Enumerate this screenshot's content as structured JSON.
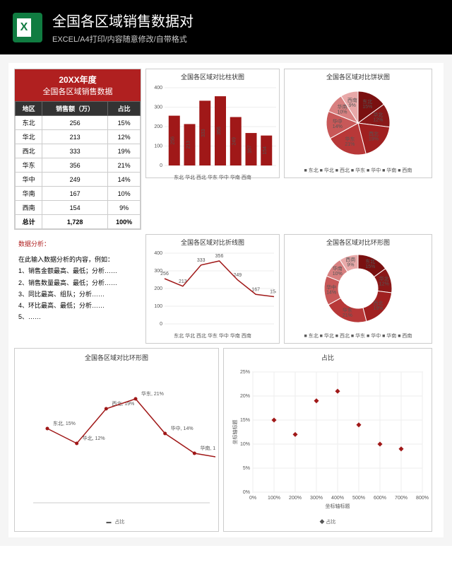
{
  "header": {
    "title": "全国各区域销售数据对",
    "subtitle": "EXCEL/A4打印/内容随意修改/自带格式",
    "icon_letter": "X"
  },
  "data_table": {
    "title_line1": "20XX年度",
    "title_line2": "全国各区域销售数据",
    "headers": [
      "地区",
      "销售额（万）",
      "占比"
    ],
    "rows": [
      [
        "东北",
        "256",
        "15%"
      ],
      [
        "华北",
        "213",
        "12%"
      ],
      [
        "西北",
        "333",
        "19%"
      ],
      [
        "华东",
        "356",
        "21%"
      ],
      [
        "华中",
        "249",
        "14%"
      ],
      [
        "华南",
        "167",
        "10%"
      ],
      [
        "西南",
        "154",
        "9%"
      ]
    ],
    "total": [
      "总计",
      "1,728",
      "100%"
    ]
  },
  "bar_chart": {
    "title": "全国各区域对比柱状图",
    "yticks": [
      0,
      100,
      200,
      300,
      400
    ],
    "categories": [
      "东北",
      "华北",
      "西北",
      "华东",
      "华中",
      "华南",
      "西南"
    ],
    "values": [
      256,
      213,
      333,
      356,
      249,
      167,
      154
    ],
    "ymax": 400,
    "bar_color": "#a01818",
    "label_color": "#fff"
  },
  "pie_chart": {
    "title": "全国各区域对比饼状图",
    "slices": [
      {
        "label": "东北",
        "pct": 15,
        "color": "#7a1010"
      },
      {
        "label": "华北",
        "pct": 12,
        "color": "#8a1818"
      },
      {
        "label": "西北",
        "pct": 19,
        "color": "#a02020"
      },
      {
        "label": "华东",
        "pct": 21,
        "color": "#b83838"
      },
      {
        "label": "华中",
        "pct": 14,
        "color": "#c85858"
      },
      {
        "label": "华南",
        "pct": 10,
        "color": "#d88080"
      },
      {
        "label": "西南",
        "pct": 9,
        "color": "#e8a8a8"
      }
    ],
    "legend": "■ 东北  ■ 华北  ■ 西北  ■ 华东  ■ 华中  ■ 华南  ■ 西南"
  },
  "analysis": {
    "title": "数据分析：",
    "intro": "在此输入数据分析的内容，例如：",
    "items": [
      "1、销售金额最高、最低；分析……",
      "2、销售数量最高、最低；分析……",
      "3、同比最高、组队；分析……",
      "4、环比最高、最低；分析……",
      "5、……"
    ]
  },
  "line_chart": {
    "title": "全国各区域对比折线图",
    "yticks": [
      0,
      100,
      200,
      300,
      400
    ],
    "categories": [
      "东北",
      "华北",
      "西北",
      "华东",
      "华中",
      "华南",
      "西南"
    ],
    "values": [
      256,
      213,
      333,
      356,
      249,
      167,
      154
    ],
    "ymax": 400,
    "line_color": "#a01818"
  },
  "donut_chart": {
    "title": "全国各区域对比环形图",
    "slices": [
      {
        "label": "东北",
        "pct": 15,
        "color": "#7a1010"
      },
      {
        "label": "华北",
        "pct": 12,
        "color": "#8a1818"
      },
      {
        "label": "西北",
        "pct": 19,
        "color": "#a02020"
      },
      {
        "label": "华东",
        "pct": 21,
        "color": "#b83838"
      },
      {
        "label": "华中",
        "pct": 14,
        "color": "#c85858"
      },
      {
        "label": "华南",
        "pct": 10,
        "color": "#d88080"
      },
      {
        "label": "西南",
        "pct": 9,
        "color": "#e8a8a8"
      }
    ],
    "legend": "■ 东北  ■ 华北  ■ 西北  ■ 华东  ■ 华中  ■ 华南  ■ 西南"
  },
  "big_line": {
    "title": "全国各区域对比环形图",
    "categories": [
      "东北",
      "华北",
      "西北",
      "华东",
      "华中",
      "华南",
      "西南"
    ],
    "pct": [
      15,
      12,
      19,
      21,
      14,
      10,
      9
    ],
    "line_color": "#a01818",
    "legend": "占比"
  },
  "scatter": {
    "title": "占比",
    "xlabel": "坐标轴标题",
    "ylabel": "坐标轴标题",
    "xticks": [
      "0%",
      "100%",
      "200%",
      "300%",
      "400%",
      "500%",
      "600%",
      "700%",
      "800%"
    ],
    "yticks": [
      "0%",
      "5%",
      "10%",
      "15%",
      "20%",
      "25%"
    ],
    "points": [
      {
        "x": 100,
        "y": 15
      },
      {
        "x": 200,
        "y": 12
      },
      {
        "x": 300,
        "y": 19
      },
      {
        "x": 400,
        "y": 21
      },
      {
        "x": 500,
        "y": 14
      },
      {
        "x": 600,
        "y": 10
      },
      {
        "x": 700,
        "y": 9
      }
    ],
    "point_color": "#a01818",
    "legend": "◆ 占比"
  }
}
